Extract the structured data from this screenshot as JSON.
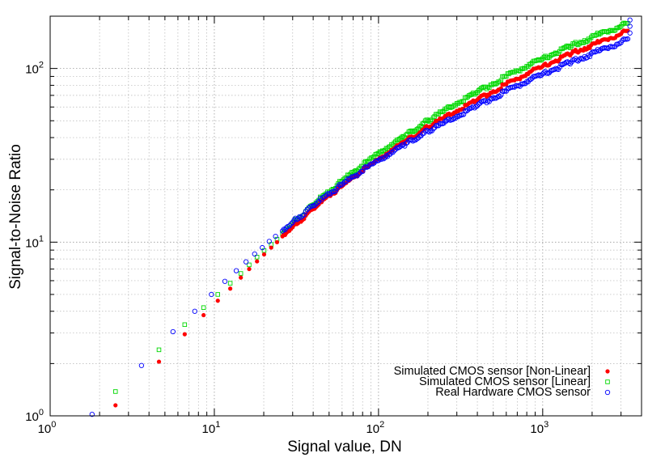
{
  "chart_data": {
    "type": "scatter",
    "title": "",
    "xlabel": "Signal value, DN",
    "ylabel": "Signal-to-Noise Ratio",
    "xscale": "log",
    "yscale": "log",
    "xlim": [
      1,
      4000
    ],
    "ylim": [
      1,
      200
    ],
    "xticks": [
      {
        "base": "10",
        "exp": "0",
        "value": 1
      },
      {
        "base": "10",
        "exp": "1",
        "value": 10
      },
      {
        "base": "10",
        "exp": "2",
        "value": 100
      },
      {
        "base": "10",
        "exp": "3",
        "value": 1000
      }
    ],
    "yticks": [
      {
        "base": "10",
        "exp": "0",
        "value": 1
      },
      {
        "base": "10",
        "exp": "1",
        "value": 10
      },
      {
        "base": "10",
        "exp": "2",
        "value": 100
      }
    ],
    "grid": true,
    "legend_position": "bottom-right",
    "series": [
      {
        "name": "Simulated CMOS sensor [Non-Linear]",
        "color": "#ff0000",
        "marker": "filled-circle",
        "points": [
          [
            2.5,
            1.15
          ],
          [
            4.6,
            2.05
          ],
          [
            6.6,
            2.95
          ],
          [
            8.6,
            3.8
          ],
          [
            10.5,
            4.6
          ],
          [
            12.5,
            5.4
          ],
          [
            14.5,
            6.25
          ],
          [
            16.3,
            7.0
          ],
          [
            18.2,
            7.75
          ],
          [
            20.1,
            8.5
          ],
          [
            22.2,
            9.3
          ],
          [
            24.1,
            10.0
          ],
          [
            26,
            10.8
          ],
          [
            28,
            11.5
          ],
          [
            30,
            12.2
          ],
          [
            33,
            13.2
          ],
          [
            36,
            14.2
          ],
          [
            40,
            15.5
          ],
          [
            45,
            17.0
          ],
          [
            50,
            18.5
          ],
          [
            60,
            21.0
          ],
          [
            70,
            23.5
          ],
          [
            85,
            27.0
          ],
          [
            100,
            30.0
          ],
          [
            120,
            34.0
          ],
          [
            150,
            39.0
          ],
          [
            200,
            46.0
          ],
          [
            250,
            52.0
          ],
          [
            300,
            57.0
          ],
          [
            400,
            66.0
          ],
          [
            500,
            74.0
          ],
          [
            600,
            81.0
          ],
          [
            700,
            87.0
          ],
          [
            800,
            93.0
          ],
          [
            1000,
            103.0
          ],
          [
            1200,
            111.0
          ],
          [
            1500,
            122.0
          ],
          [
            1800,
            131.0
          ],
          [
            2200,
            141.0
          ],
          [
            2600,
            150.0
          ],
          [
            3000,
            158.0
          ],
          [
            3300,
            165.0
          ]
        ]
      },
      {
        "name": "Simulated CMOS sensor [Linear]",
        "color": "#00d800",
        "marker": "open-square",
        "points": [
          [
            2.5,
            1.38
          ],
          [
            4.6,
            2.4
          ],
          [
            6.6,
            3.35
          ],
          [
            8.6,
            4.2
          ],
          [
            10.5,
            5.0
          ],
          [
            12.5,
            5.8
          ],
          [
            14.5,
            6.6
          ],
          [
            16.3,
            7.4
          ],
          [
            18.2,
            8.2
          ],
          [
            20.1,
            8.95
          ],
          [
            22.2,
            9.7
          ],
          [
            24.1,
            10.4
          ],
          [
            26,
            11.2
          ],
          [
            28,
            12.0
          ],
          [
            30,
            12.8
          ],
          [
            33,
            13.9
          ],
          [
            36,
            15.0
          ],
          [
            40,
            16.4
          ],
          [
            45,
            18.0
          ],
          [
            50,
            19.5
          ],
          [
            60,
            22.5
          ],
          [
            70,
            25.3
          ],
          [
            85,
            29.0
          ],
          [
            100,
            32.5
          ],
          [
            120,
            36.5
          ],
          [
            150,
            42.0
          ],
          [
            200,
            50.0
          ],
          [
            250,
            57.0
          ],
          [
            300,
            63.0
          ],
          [
            400,
            73.0
          ],
          [
            500,
            82.0
          ],
          [
            600,
            90.0
          ],
          [
            700,
            97.0
          ],
          [
            800,
            103.0
          ],
          [
            1000,
            114.0
          ],
          [
            1200,
            123.0
          ],
          [
            1500,
            135.0
          ],
          [
            1800,
            145.0
          ],
          [
            2200,
            157.0
          ],
          [
            2600,
            166.0
          ],
          [
            3000,
            175.0
          ],
          [
            3300,
            182.0
          ]
        ]
      },
      {
        "name": "Real Hardware CMOS sensor",
        "color": "#0000ff",
        "marker": "open-circle",
        "points": [
          [
            1.8,
            1.02
          ],
          [
            3.6,
            1.95
          ],
          [
            5.6,
            3.05
          ],
          [
            7.6,
            4.0
          ],
          [
            9.6,
            5.0
          ],
          [
            11.6,
            5.95
          ],
          [
            13.6,
            6.85
          ],
          [
            15.6,
            7.7
          ],
          [
            17.6,
            8.55
          ],
          [
            19.6,
            9.3
          ],
          [
            21.6,
            10.1
          ],
          [
            23.6,
            10.8
          ],
          [
            26,
            11.6
          ],
          [
            28,
            12.3
          ],
          [
            30,
            13.0
          ],
          [
            33,
            14.0
          ],
          [
            36,
            15.0
          ],
          [
            40,
            16.2
          ],
          [
            45,
            17.6
          ],
          [
            50,
            19.0
          ],
          [
            60,
            21.5
          ],
          [
            70,
            23.8
          ],
          [
            85,
            27.0
          ],
          [
            100,
            29.5
          ],
          [
            120,
            33.0
          ],
          [
            150,
            37.5
          ],
          [
            200,
            43.5
          ],
          [
            250,
            48.5
          ],
          [
            300,
            53.0
          ],
          [
            400,
            61.0
          ],
          [
            500,
            68.0
          ],
          [
            600,
            74.0
          ],
          [
            700,
            79.5
          ],
          [
            800,
            84.0
          ],
          [
            1000,
            93.0
          ],
          [
            1200,
            100.0
          ],
          [
            1500,
            109.0
          ],
          [
            1800,
            117.0
          ],
          [
            2200,
            126.0
          ],
          [
            2600,
            134.0
          ],
          [
            3000,
            141.0
          ],
          [
            3300,
            148.0
          ],
          [
            3400,
            160.0
          ],
          [
            3400,
            175.0
          ],
          [
            3400,
            190.0
          ]
        ]
      }
    ]
  }
}
